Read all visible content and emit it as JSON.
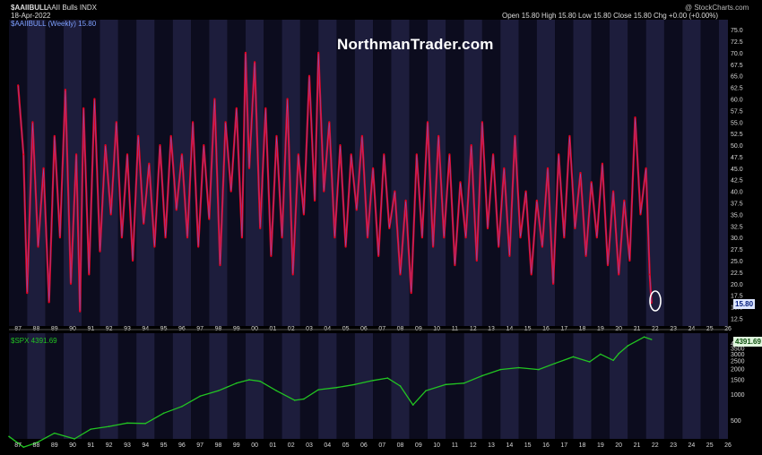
{
  "header": {
    "symbol": "$AAIIBULL",
    "title": "AAII Bulls INDX",
    "date": "18-Apr-2022",
    "series_label": "$AAIIBULL (Weekly) 15.80",
    "ohlc": "Open 15.80  High 15.80  Low 15.80  Close 15.80  Chg +0.00 (+0.00%)",
    "source": "@ StockCharts.com"
  },
  "watermark": "NorthmanTrader.com",
  "last_value_badge": "15.80",
  "spx_label": "$SPX 4391.69",
  "spx_badge": "4391.69",
  "colors": {
    "background": "#000000",
    "band_dark": "#0c0c1e",
    "band_alt": "#1d1d3c",
    "bull_line": "#e8001c",
    "bull_line_inner": "#4a7cff",
    "spx_line": "#22c422",
    "axis_text": "#d8d8d8"
  },
  "annotation": "circle-highlight-latest-low",
  "x_tick_labels": [
    "87",
    "88",
    "89",
    "90",
    "91",
    "92",
    "93",
    "94",
    "95",
    "96",
    "97",
    "98",
    "99",
    "00",
    "01",
    "02",
    "03",
    "04",
    "05",
    "06",
    "07",
    "08",
    "09",
    "10",
    "11",
    "12",
    "13",
    "14",
    "15",
    "16",
    "17",
    "18",
    "19",
    "20",
    "21",
    "22",
    "23",
    "24",
    "25",
    "26"
  ],
  "chart_data": [
    {
      "type": "line",
      "panel": "top",
      "title": "AAII Bulls INDX",
      "series": [
        {
          "name": "$AAIIBULL (Weekly)",
          "x": [
            1987.5,
            1987.8,
            1988.0,
            1988.3,
            1988.6,
            1988.9,
            1989.2,
            1989.5,
            1989.8,
            1990.1,
            1990.4,
            1990.7,
            1990.9,
            1991.1,
            1991.4,
            1991.7,
            1992.0,
            1992.3,
            1992.6,
            1992.9,
            1993.2,
            1993.5,
            1993.8,
            1994.1,
            1994.4,
            1994.7,
            1995.0,
            1995.3,
            1995.6,
            1995.9,
            1996.2,
            1996.5,
            1996.8,
            1997.1,
            1997.4,
            1997.7,
            1998.0,
            1998.3,
            1998.6,
            1998.9,
            1999.2,
            1999.5,
            1999.8,
            2000.0,
            2000.2,
            2000.5,
            2000.8,
            2001.1,
            2001.4,
            2001.7,
            2002.0,
            2002.3,
            2002.6,
            2002.9,
            2003.2,
            2003.5,
            2003.8,
            2004.0,
            2004.3,
            2004.6,
            2004.9,
            2005.2,
            2005.5,
            2005.8,
            2006.1,
            2006.4,
            2006.7,
            2007.0,
            2007.3,
            2007.6,
            2007.9,
            2008.2,
            2008.5,
            2008.8,
            2009.1,
            2009.4,
            2009.7,
            2010.0,
            2010.3,
            2010.6,
            2010.9,
            2011.2,
            2011.5,
            2011.8,
            2012.1,
            2012.4,
            2012.7,
            2013.0,
            2013.3,
            2013.6,
            2013.9,
            2014.2,
            2014.5,
            2014.8,
            2015.1,
            2015.4,
            2015.7,
            2016.0,
            2016.3,
            2016.6,
            2016.9,
            2017.2,
            2017.5,
            2017.8,
            2018.1,
            2018.4,
            2018.7,
            2019.0,
            2019.3,
            2019.6,
            2019.9,
            2020.2,
            2020.5,
            2020.8,
            2021.1,
            2021.4,
            2021.7,
            2022.0,
            2022.2,
            2022.3
          ],
          "values": [
            63,
            48,
            18,
            55,
            28,
            45,
            16,
            52,
            30,
            62,
            20,
            48,
            14,
            58,
            22,
            60,
            27,
            50,
            35,
            55,
            30,
            48,
            25,
            52,
            33,
            46,
            28,
            50,
            30,
            52,
            36,
            48,
            30,
            55,
            28,
            50,
            34,
            60,
            24,
            55,
            40,
            58,
            30,
            70,
            45,
            68,
            32,
            58,
            26,
            52,
            30,
            60,
            22,
            48,
            35,
            65,
            38,
            70,
            40,
            55,
            30,
            50,
            28,
            48,
            36,
            52,
            30,
            45,
            26,
            48,
            32,
            40,
            22,
            38,
            18,
            48,
            30,
            55,
            28,
            52,
            30,
            48,
            24,
            42,
            30,
            50,
            25,
            55,
            32,
            48,
            28,
            45,
            26,
            52,
            30,
            40,
            22,
            38,
            28,
            45,
            20,
            48,
            30,
            52,
            32,
            44,
            26,
            42,
            30,
            46,
            24,
            40,
            22,
            38,
            25,
            56,
            35,
            45,
            22,
            15.8
          ]
        }
      ],
      "xlim": [
        1987,
        2026.5
      ],
      "ylim": [
        12,
        76
      ],
      "y_ticks": [
        12.5,
        15.0,
        17.5,
        20.0,
        22.5,
        25.0,
        27.5,
        30.0,
        32.5,
        35.0,
        37.5,
        40.0,
        42.5,
        45.0,
        47.5,
        50.0,
        52.5,
        55.0,
        57.5,
        60.0,
        62.5,
        65.0,
        67.5,
        70.0,
        72.5,
        75.0
      ],
      "grid": false,
      "background": "alternating-yearly-bands"
    },
    {
      "type": "line",
      "panel": "bottom",
      "series": [
        {
          "name": "$SPX",
          "x": [
            1987.0,
            1987.8,
            1988.5,
            1989.5,
            1990.6,
            1991.5,
            1992.5,
            1993.5,
            1994.5,
            1995.5,
            1996.5,
            1997.5,
            1998.5,
            1999.5,
            2000.2,
            2000.8,
            2001.7,
            2002.7,
            2003.2,
            2004.0,
            2005.0,
            2006.0,
            2007.0,
            2007.8,
            2008.5,
            2009.2,
            2009.9,
            2011.0,
            2012.0,
            2013.0,
            2014.0,
            2015.0,
            2016.1,
            2017.0,
            2018.0,
            2018.9,
            2019.5,
            2020.2,
            2020.5,
            2021.0,
            2021.9,
            2022.3
          ],
          "values": [
            320,
            240,
            270,
            350,
            300,
            390,
            420,
            460,
            455,
            600,
            720,
            950,
            1100,
            1350,
            1480,
            1420,
            1100,
            850,
            880,
            1130,
            1200,
            1300,
            1450,
            1550,
            1250,
            750,
            1100,
            1300,
            1350,
            1650,
            1950,
            2050,
            1950,
            2300,
            2750,
            2400,
            2950,
            2500,
            3000,
            3700,
            4700,
            4391.69
          ]
        }
      ],
      "xlim": [
        1987,
        2026.5
      ],
      "y_scale": "log",
      "y_ticks": [
        500,
        1000,
        1500,
        2000,
        2500,
        3000,
        3500,
        4000
      ],
      "grid": false
    }
  ]
}
